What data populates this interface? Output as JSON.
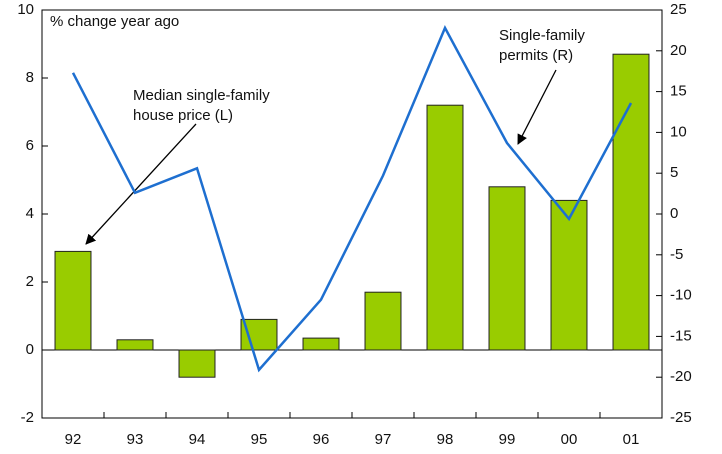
{
  "chart_data": {
    "type": "bar_line",
    "annotation": "% change year ago",
    "categories": [
      "92",
      "93",
      "94",
      "95",
      "96",
      "97",
      "98",
      "99",
      "00",
      "01"
    ],
    "series": [
      {
        "name": "Median single-family house price (L)",
        "type": "bar",
        "color": "#99cc00",
        "axis": "y",
        "values": [
          2.9,
          0.3,
          -0.8,
          0.9,
          0.35,
          1.7,
          7.2,
          4.8,
          4.4,
          8.7
        ]
      },
      {
        "name": "Single-family permits (R)",
        "type": "line",
        "color": "#1e6fd0",
        "axis": "y2",
        "values": [
          17.3,
          2.6,
          5.6,
          -19.1,
          -10.5,
          4.7,
          22.8,
          8.7,
          -0.6,
          13.6
        ]
      }
    ],
    "ylim": [
      -2,
      10
    ],
    "yticks": [
      -2,
      0,
      2,
      4,
      6,
      8,
      10
    ],
    "y2lim": [
      -25,
      25
    ],
    "y2ticks": [
      -25,
      -20,
      -15,
      -10,
      -5,
      0,
      5,
      10,
      15,
      20,
      25
    ],
    "grid": false
  }
}
